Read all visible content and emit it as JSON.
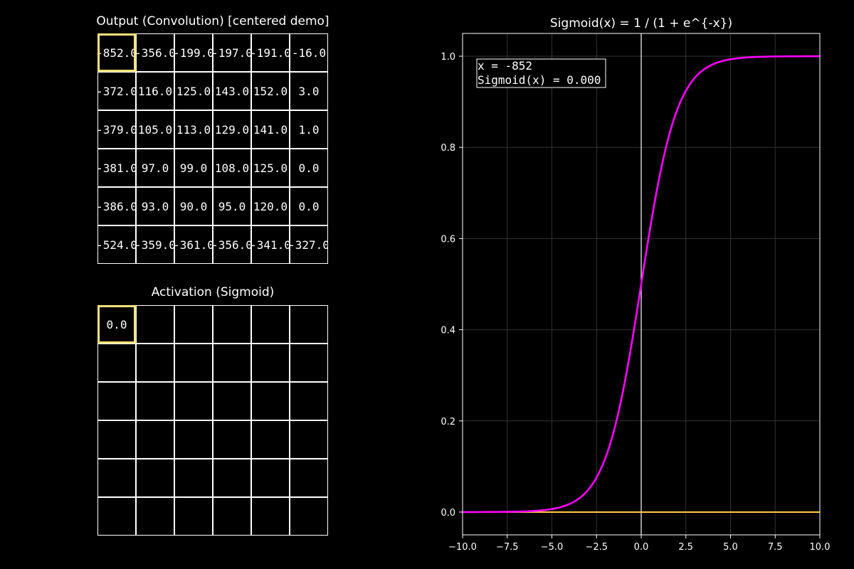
{
  "colors": {
    "background": "#000000",
    "highlight": "#ffe27a",
    "sigmoid_curve": "#ff00ff",
    "baseline": "#ffcc44",
    "axis": "#ffffff",
    "grid": "#333333"
  },
  "convolution": {
    "title": "Output (Convolution) [centered demo]",
    "rows": [
      [
        "-852.0",
        "-356.0",
        "-199.0",
        "-197.0",
        "-191.0",
        "-16.0"
      ],
      [
        "-372.0",
        "116.0",
        "125.0",
        "143.0",
        "152.0",
        "3.0"
      ],
      [
        "-379.0",
        "105.0",
        "113.0",
        "129.0",
        "141.0",
        "1.0"
      ],
      [
        "-381.0",
        "97.0",
        "99.0",
        "108.0",
        "125.0",
        "0.0"
      ],
      [
        "-386.0",
        "93.0",
        "90.0",
        "95.0",
        "120.0",
        "0.0"
      ],
      [
        "-524.0",
        "-359.0",
        "-361.0",
        "-356.0",
        "-341.0",
        "-327.0"
      ]
    ],
    "highlight_cell": [
      0,
      0
    ]
  },
  "activation": {
    "title": "Activation (Sigmoid)",
    "rows": [
      [
        "0.0",
        "",
        "",
        "",
        "",
        ""
      ],
      [
        "",
        "",
        "",
        "",
        "",
        ""
      ],
      [
        "",
        "",
        "",
        "",
        "",
        ""
      ],
      [
        "",
        "",
        "",
        "",
        "",
        ""
      ],
      [
        "",
        "",
        "",
        "",
        "",
        ""
      ],
      [
        "",
        "",
        "",
        "",
        "",
        ""
      ]
    ],
    "highlight_cell": [
      0,
      0
    ]
  },
  "chart_data": {
    "type": "line",
    "title": "Sigmoid(x) = 1 / (1 + e^{-x})",
    "xlabel": "",
    "ylabel": "",
    "xlim": [
      -10,
      10
    ],
    "ylim": [
      -0.05,
      1.05
    ],
    "x_ticks": [
      "−10.0",
      "−7.5",
      "−5.0",
      "−2.5",
      "0.0",
      "2.5",
      "5.0",
      "7.5",
      "10.0"
    ],
    "x_tick_values": [
      -10,
      -7.5,
      -5,
      -2.5,
      0,
      2.5,
      5,
      7.5,
      10
    ],
    "y_ticks": [
      "0.0",
      "0.2",
      "0.4",
      "0.6",
      "0.8",
      "1.0"
    ],
    "y_tick_values": [
      0,
      0.2,
      0.4,
      0.6,
      0.8,
      1.0
    ],
    "grid": true,
    "function": "sigmoid",
    "series": [
      {
        "values_x": [
          -10,
          -8,
          -6,
          -5,
          -4,
          -3,
          -2.5,
          -2,
          -1.5,
          -1,
          -0.5,
          0,
          0.5,
          1,
          1.5,
          2,
          2.5,
          3,
          4,
          5,
          6,
          8,
          10
        ],
        "values_y": [
          4.54e-05,
          0.000335,
          0.00247,
          0.00669,
          0.018,
          0.0474,
          0.0759,
          0.1192,
          0.1824,
          0.2689,
          0.3775,
          0.5,
          0.6225,
          0.7311,
          0.8176,
          0.8808,
          0.9241,
          0.9526,
          0.982,
          0.9933,
          0.9975,
          0.9997,
          0.99995
        ]
      }
    ],
    "vertical_line_x": 0,
    "marker": {
      "x": -852,
      "y": 0.0
    },
    "annotation": {
      "line1": "x = -852",
      "line2": "Sigmoid(x) = 0.000"
    }
  }
}
